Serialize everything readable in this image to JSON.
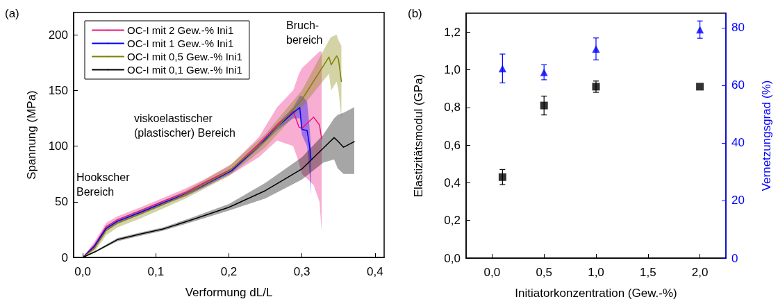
{
  "chart_data": [
    {
      "type": "line",
      "title": "(a)",
      "xlabel": "Verformung dL/L",
      "ylabel": "Spannung (MPa)",
      "xlim": [
        -0.0125,
        0.4125
      ],
      "ylim": [
        0,
        220
      ],
      "xticks": [
        {
          "value": 0,
          "label": "0,0"
        },
        {
          "value": 0.1,
          "label": "0,1"
        },
        {
          "value": 0.2,
          "label": "0,2"
        },
        {
          "value": 0.3,
          "label": "0,3"
        },
        {
          "value": 0.4,
          "label": "0,4"
        }
      ],
      "yticks": [
        0,
        50,
        100,
        150,
        200
      ],
      "legend": "top left",
      "series": [
        {
          "name": "OC-I mit 2 Gew.-% Ini1",
          "color": "#e8177d",
          "x": [
            0,
            0.016,
            0.032,
            0.0475,
            0.079,
            0.11,
            0.141,
            0.166,
            0.204,
            0.241,
            0.266,
            0.288,
            0.296,
            0.3,
            0.316,
            0.324,
            0.327
          ],
          "values": [
            0,
            11,
            27.6,
            33.9,
            42,
            50.5,
            58.4,
            67,
            79.5,
            102,
            119,
            131.5,
            117,
            116,
            126,
            119,
            106.5
          ],
          "lower": [
            0,
            8,
            24,
            31,
            39,
            47.5,
            55,
            63,
            75,
            90,
            105,
            100,
            85,
            75,
            65,
            50,
            23
          ],
          "upper": [
            0,
            14,
            31,
            37,
            45,
            53.5,
            62,
            70,
            84,
            108,
            135,
            150,
            165,
            170,
            180,
            185,
            185
          ]
        },
        {
          "name": "OC-I mit 1 Gew.-% Ini1",
          "color": "#0000ff",
          "x": [
            0,
            0.016,
            0.032,
            0.0475,
            0.079,
            0.11,
            0.141,
            0.166,
            0.204,
            0.241,
            0.266,
            0.288,
            0.297,
            0.3,
            0.307,
            0.31,
            0.3125
          ],
          "values": [
            0,
            10,
            26,
            32.5,
            40.5,
            49,
            57,
            65,
            78,
            100,
            117,
            130,
            134.6,
            115,
            114,
            102,
            88
          ],
          "lower": [
            0,
            8,
            24,
            30.5,
            38.5,
            47,
            55,
            63,
            76,
            98,
            114,
            125,
            125,
            110,
            100,
            80,
            55
          ],
          "upper": [
            0,
            12,
            28,
            34.5,
            42.5,
            51,
            59,
            67,
            80,
            102,
            120,
            135,
            145,
            145,
            140,
            120,
            100
          ]
        },
        {
          "name": "OC-I mit 0,5 Gew.-% Ini1",
          "color": "#808000",
          "x": [
            0,
            0.016,
            0.032,
            0.0475,
            0.079,
            0.11,
            0.141,
            0.2,
            0.25,
            0.3,
            0.337,
            0.34,
            0.3475,
            0.35,
            0.354
          ],
          "values": [
            0,
            8,
            24,
            30.7,
            39,
            47.5,
            56.7,
            77.5,
            105,
            141.8,
            180,
            173,
            181,
            178,
            158
          ],
          "lower": [
            0,
            5,
            20,
            27,
            35,
            44,
            53,
            73,
            99,
            135,
            165,
            150,
            158,
            150,
            125
          ],
          "upper": [
            0,
            11,
            28,
            34,
            43,
            51,
            60,
            82,
            111,
            150,
            195,
            198,
            200,
            195,
            190
          ]
        },
        {
          "name": "OC-I mit 0,1 Gew.-% Ini1",
          "color": "#000000",
          "x": [
            0,
            0.016,
            0.0475,
            0.079,
            0.11,
            0.15,
            0.2,
            0.25,
            0.3,
            0.329,
            0.344,
            0.349,
            0.357,
            0.3716
          ],
          "values": [
            0,
            4.8,
            16,
            21,
            25.5,
            34,
            45,
            60,
            79.5,
            98,
            107.6,
            104.5,
            99,
            104
          ],
          "lower": [
            0,
            4,
            14.5,
            19.5,
            24,
            32,
            42,
            53,
            70,
            85,
            88,
            80,
            75,
            75
          ],
          "upper": [
            0,
            5.5,
            17.5,
            22.5,
            27,
            36,
            48,
            67,
            90,
            110,
            125,
            128,
            130,
            135
          ]
        }
      ],
      "annotations": [
        "Hookscher\nBereich",
        "viskoelastischer\n(plastischer) Bereich",
        "Bruch-\nbereich"
      ]
    },
    {
      "type": "scatter",
      "title": "(b)",
      "xlabel": "Initiatorkonzentration (Gew.-%)",
      "ylabel": "Elastizitätsmodul (GPa)",
      "y2label": "Vernetzungsgrad (%)",
      "xlim": [
        -0.25,
        2.25
      ],
      "ylim": [
        0,
        1.3
      ],
      "y2lim": [
        0,
        85
      ],
      "xticks": [
        {
          "value": 0,
          "label": "0,0"
        },
        {
          "value": 0.5,
          "label": "0,5"
        },
        {
          "value": 1,
          "label": "1,0"
        },
        {
          "value": 1.5,
          "label": "1,5"
        },
        {
          "value": 2,
          "label": "2,0"
        }
      ],
      "yticks": [
        {
          "value": 0,
          "label": "0,0"
        },
        {
          "value": 0.2,
          "label": "0,2"
        },
        {
          "value": 0.4,
          "label": "0,4"
        },
        {
          "value": 0.6,
          "label": "0,6"
        },
        {
          "value": 0.8,
          "label": "0,8"
        },
        {
          "value": 1,
          "label": "1,0"
        },
        {
          "value": 1.2,
          "label": "1,2"
        }
      ],
      "y2ticks": [
        0,
        20,
        40,
        60,
        80
      ],
      "series": [
        {
          "color": "#000000",
          "marker": "square",
          "x": [
            0.1,
            0.5,
            1,
            2
          ],
          "values": [
            0.43,
            0.81,
            0.91,
            0.91
          ],
          "errors": [
            0.04,
            0.05,
            0.03,
            null
          ]
        },
        {
          "color": "#0000ff",
          "marker": "triangle",
          "axis": "y2",
          "x": [
            0.1,
            0.5,
            1,
            2
          ],
          "values": [
            65.8,
            64.5,
            72.6,
            79.3
          ],
          "errors": [
            5,
            2.6,
            3.8,
            3
          ]
        }
      ]
    }
  ]
}
